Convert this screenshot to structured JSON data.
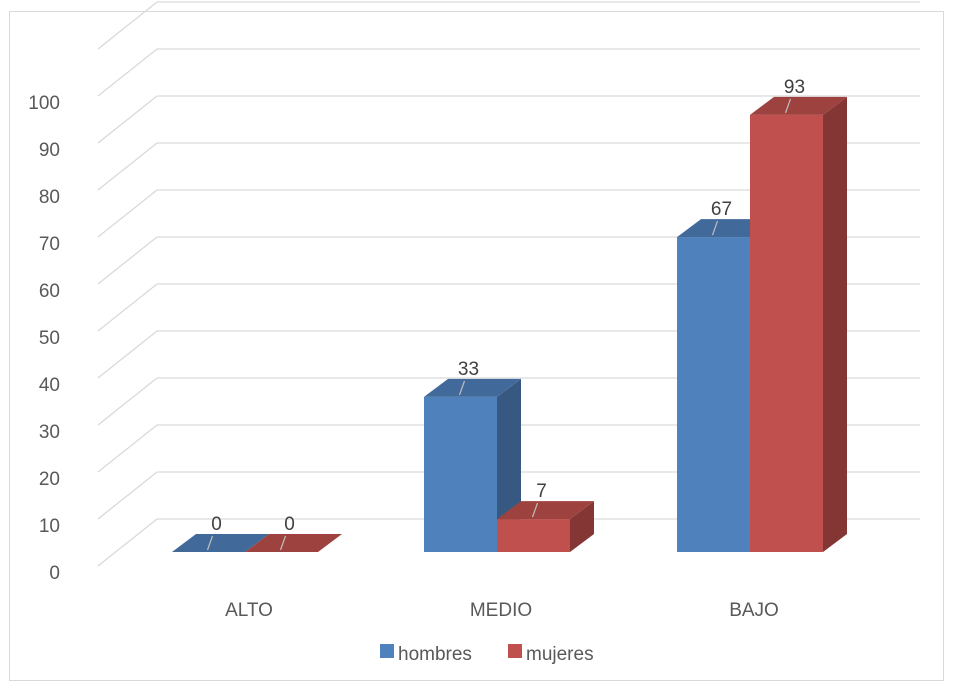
{
  "chart_data": {
    "type": "bar",
    "style": "3d-clustered-column",
    "categories": [
      "ALTO",
      "MEDIO",
      "BAJO"
    ],
    "series": [
      {
        "name": "hombres",
        "values": [
          0,
          33,
          67
        ],
        "color": "#4f81bd"
      },
      {
        "name": "mujeres",
        "values": [
          0,
          7,
          93
        ],
        "color": "#c0504d"
      }
    ],
    "y_ticks": [
      "0",
      "10",
      "20",
      "30",
      "40",
      "50",
      "60",
      "70",
      "80",
      "90",
      "100"
    ],
    "ylim": [
      0,
      110
    ],
    "grid": true,
    "data_labels": true,
    "legend": "bottom"
  }
}
